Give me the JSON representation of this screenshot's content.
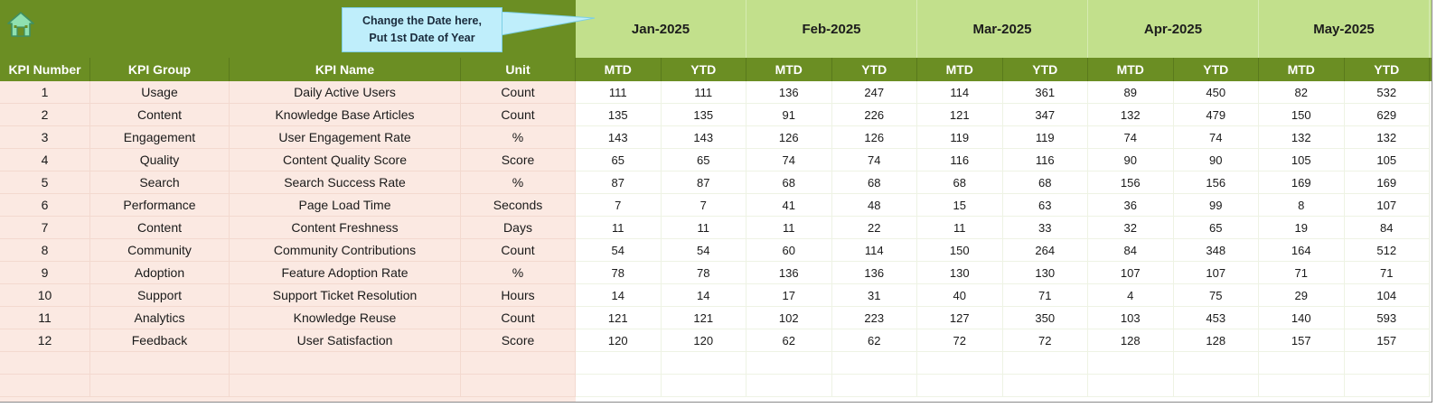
{
  "callout": {
    "line1": "Change the Date here,",
    "line2": "Put 1st Date of Year"
  },
  "icons": {
    "home": "home-icon"
  },
  "colors": {
    "header_green": "#6b8e23",
    "month_band": "#c2e08c",
    "left_body": "#fbe9e2",
    "callout_bg": "#bfeefb",
    "home_icon": "#8fe0b0"
  },
  "months": [
    "Jan-2025",
    "Feb-2025",
    "Mar-2025",
    "Apr-2025",
    "May-2025"
  ],
  "columns": {
    "kpi_number": "KPI Number",
    "kpi_group": "KPI Group",
    "kpi_name": "KPI Name",
    "unit": "Unit",
    "mtd": "MTD",
    "ytd": "YTD"
  },
  "rows": [
    {
      "num": "1",
      "group": "Usage",
      "name": "Daily Active Users",
      "unit": "Count",
      "vals": [
        "111",
        "111",
        "136",
        "247",
        "114",
        "361",
        "89",
        "450",
        "82",
        "532"
      ]
    },
    {
      "num": "2",
      "group": "Content",
      "name": "Knowledge Base Articles",
      "unit": "Count",
      "vals": [
        "135",
        "135",
        "91",
        "226",
        "121",
        "347",
        "132",
        "479",
        "150",
        "629"
      ]
    },
    {
      "num": "3",
      "group": "Engagement",
      "name": "User Engagement Rate",
      "unit": "%",
      "vals": [
        "143",
        "143",
        "126",
        "126",
        "119",
        "119",
        "74",
        "74",
        "132",
        "132"
      ]
    },
    {
      "num": "4",
      "group": "Quality",
      "name": "Content Quality Score",
      "unit": "Score",
      "vals": [
        "65",
        "65",
        "74",
        "74",
        "116",
        "116",
        "90",
        "90",
        "105",
        "105"
      ]
    },
    {
      "num": "5",
      "group": "Search",
      "name": "Search Success Rate",
      "unit": "%",
      "vals": [
        "87",
        "87",
        "68",
        "68",
        "68",
        "68",
        "156",
        "156",
        "169",
        "169"
      ]
    },
    {
      "num": "6",
      "group": "Performance",
      "name": "Page Load Time",
      "unit": "Seconds",
      "vals": [
        "7",
        "7",
        "41",
        "48",
        "15",
        "63",
        "36",
        "99",
        "8",
        "107"
      ]
    },
    {
      "num": "7",
      "group": "Content",
      "name": "Content Freshness",
      "unit": "Days",
      "vals": [
        "11",
        "11",
        "11",
        "22",
        "11",
        "33",
        "32",
        "65",
        "19",
        "84"
      ]
    },
    {
      "num": "8",
      "group": "Community",
      "name": "Community Contributions",
      "unit": "Count",
      "vals": [
        "54",
        "54",
        "60",
        "114",
        "150",
        "264",
        "84",
        "348",
        "164",
        "512"
      ]
    },
    {
      "num": "9",
      "group": "Adoption",
      "name": "Feature Adoption Rate",
      "unit": "%",
      "vals": [
        "78",
        "78",
        "136",
        "136",
        "130",
        "130",
        "107",
        "107",
        "71",
        "71"
      ]
    },
    {
      "num": "10",
      "group": "Support",
      "name": "Support Ticket Resolution",
      "unit": "Hours",
      "vals": [
        "14",
        "14",
        "17",
        "31",
        "40",
        "71",
        "4",
        "75",
        "29",
        "104"
      ]
    },
    {
      "num": "11",
      "group": "Analytics",
      "name": "Knowledge Reuse",
      "unit": "Count",
      "vals": [
        "121",
        "121",
        "102",
        "223",
        "127",
        "350",
        "103",
        "453",
        "140",
        "593"
      ]
    },
    {
      "num": "12",
      "group": "Feedback",
      "name": "User Satisfaction",
      "unit": "Score",
      "vals": [
        "120",
        "120",
        "62",
        "62",
        "72",
        "72",
        "128",
        "128",
        "157",
        "157"
      ]
    }
  ]
}
